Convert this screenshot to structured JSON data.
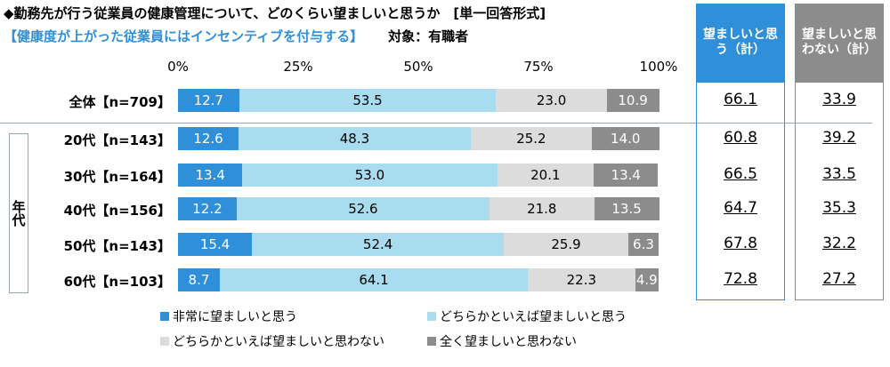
{
  "header": {
    "title": "◆勤務先が行う従業員の健康管理について、どのくらい望ましいと思うか　[単一回答形式]",
    "subtitle": "【健康度が上がった従業員にはインセンティブを付与する】",
    "subject": "対象：有職者"
  },
  "chart_data": {
    "type": "bar",
    "orientation": "horizontal",
    "stacked": true,
    "xlim": [
      0,
      100
    ],
    "xticks": [
      "0%",
      "25%",
      "50%",
      "75%",
      "100%"
    ],
    "categories": [
      "全体【n=709】",
      "20代【n=143】",
      "30代【n=164】",
      "40代【n=156】",
      "50代【n=143】",
      "60代【n=103】"
    ],
    "series": [
      {
        "name": "非常に望ましいと思う",
        "color": "#2f8fd8",
        "label_color": "#ffffff",
        "values": [
          12.7,
          12.6,
          13.4,
          12.2,
          15.4,
          8.7
        ]
      },
      {
        "name": "どちらかといえば望ましいと思う",
        "color": "#a9dcee",
        "label_color": "#000000",
        "values": [
          53.5,
          48.3,
          53.0,
          52.6,
          52.4,
          64.1
        ]
      },
      {
        "name": "どちらかといえば望ましいと思わない",
        "color": "#dcdcdc",
        "label_color": "#000000",
        "values": [
          23.0,
          25.2,
          20.1,
          21.8,
          25.9,
          22.3
        ]
      },
      {
        "name": "全く望ましいと思わない",
        "color": "#8c8c8c",
        "label_color": "#ffffff",
        "values": [
          10.9,
          14.0,
          13.4,
          13.5,
          6.3,
          4.9
        ]
      }
    ],
    "group_label": "年代",
    "summary_columns": [
      {
        "header": "望ましいと思う（計）",
        "color": "#2f8fd8",
        "values": [
          "66.1",
          "60.8",
          "66.5",
          "64.7",
          "67.8",
          "72.8"
        ]
      },
      {
        "header": "望ましいと思わない（計）",
        "color": "#8c8c8c",
        "values": [
          "33.9",
          "39.2",
          "33.5",
          "35.3",
          "32.2",
          "27.2"
        ]
      }
    ]
  }
}
